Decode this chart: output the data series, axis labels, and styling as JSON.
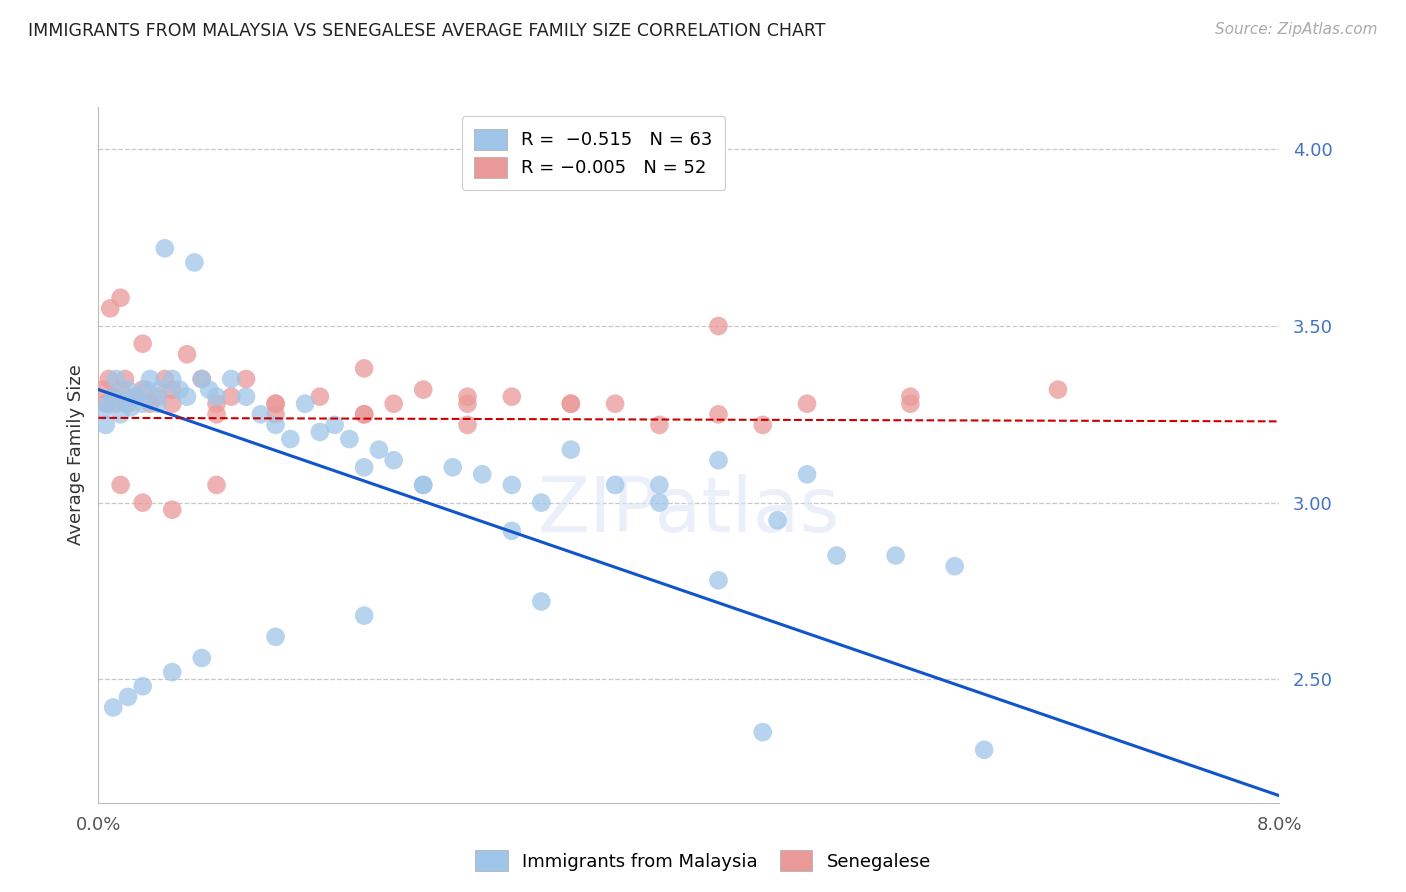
{
  "title": "IMMIGRANTS FROM MALAYSIA VS SENEGALESE AVERAGE FAMILY SIZE CORRELATION CHART",
  "source": "Source: ZipAtlas.com",
  "ylabel": "Average Family Size",
  "yticks": [
    2.5,
    3.0,
    3.5,
    4.0
  ],
  "ytick_color": "#4472C4",
  "background_color": "#ffffff",
  "grid_color": "#c8c8c8",
  "blue_color": "#9FC5E8",
  "pink_color": "#EA9999",
  "trendline_blue": "#1155CC",
  "trendline_pink": "#CC0000",
  "xmin": 0.0,
  "xmax": 0.08,
  "ymin": 2.15,
  "ymax": 4.12,
  "blue_trend_x0": 0.0,
  "blue_trend_x1": 0.08,
  "blue_trend_y0": 3.32,
  "blue_trend_y1": 2.17,
  "pink_trend_x0": 0.0,
  "pink_trend_x1": 0.08,
  "pink_trend_y0": 3.24,
  "pink_trend_y1": 3.23,
  "blue_scatter_x": [
    0.0003,
    0.0005,
    0.0007,
    0.001,
    0.0012,
    0.0015,
    0.0018,
    0.002,
    0.0022,
    0.0025,
    0.003,
    0.0032,
    0.0035,
    0.004,
    0.0042,
    0.0045,
    0.005,
    0.0055,
    0.006,
    0.0065,
    0.007,
    0.0075,
    0.008,
    0.009,
    0.01,
    0.011,
    0.012,
    0.013,
    0.014,
    0.015,
    0.016,
    0.017,
    0.018,
    0.019,
    0.02,
    0.022,
    0.024,
    0.026,
    0.028,
    0.03,
    0.032,
    0.035,
    0.038,
    0.042,
    0.046,
    0.05,
    0.054,
    0.058,
    0.048,
    0.038,
    0.028,
    0.022,
    0.042,
    0.03,
    0.018,
    0.012,
    0.007,
    0.005,
    0.003,
    0.002,
    0.001,
    0.045,
    0.06
  ],
  "blue_scatter_y": [
    3.26,
    3.22,
    3.28,
    3.3,
    3.35,
    3.25,
    3.28,
    3.32,
    3.27,
    3.3,
    3.28,
    3.32,
    3.35,
    3.28,
    3.32,
    3.72,
    3.35,
    3.32,
    3.3,
    3.68,
    3.35,
    3.32,
    3.3,
    3.35,
    3.3,
    3.25,
    3.22,
    3.18,
    3.28,
    3.2,
    3.22,
    3.18,
    3.1,
    3.15,
    3.12,
    3.05,
    3.1,
    3.08,
    3.05,
    3.0,
    3.15,
    3.05,
    3.05,
    3.12,
    2.95,
    2.85,
    2.85,
    2.82,
    3.08,
    3.0,
    2.92,
    3.05,
    2.78,
    2.72,
    2.68,
    2.62,
    2.56,
    2.52,
    2.48,
    2.45,
    2.42,
    2.35,
    2.3
  ],
  "pink_scatter_x": [
    0.0003,
    0.0005,
    0.0007,
    0.001,
    0.0012,
    0.0015,
    0.0018,
    0.002,
    0.0025,
    0.003,
    0.0035,
    0.004,
    0.0045,
    0.005,
    0.006,
    0.007,
    0.008,
    0.009,
    0.01,
    0.012,
    0.015,
    0.018,
    0.02,
    0.022,
    0.025,
    0.028,
    0.032,
    0.038,
    0.042,
    0.048,
    0.055,
    0.065,
    0.0008,
    0.0015,
    0.003,
    0.005,
    0.008,
    0.012,
    0.018,
    0.025,
    0.035,
    0.045,
    0.055,
    0.042,
    0.032,
    0.025,
    0.018,
    0.012,
    0.008,
    0.005,
    0.003,
    0.0015
  ],
  "pink_scatter_y": [
    3.32,
    3.28,
    3.35,
    3.3,
    3.28,
    3.32,
    3.35,
    3.28,
    3.3,
    3.32,
    3.28,
    3.3,
    3.35,
    3.28,
    3.42,
    3.35,
    3.28,
    3.3,
    3.35,
    3.25,
    3.3,
    3.25,
    3.28,
    3.32,
    3.28,
    3.3,
    3.28,
    3.22,
    3.25,
    3.28,
    3.3,
    3.32,
    3.55,
    3.58,
    3.45,
    3.32,
    3.25,
    3.28,
    3.38,
    3.3,
    3.28,
    3.22,
    3.28,
    3.5,
    3.28,
    3.22,
    3.25,
    3.28,
    3.05,
    2.98,
    3.0,
    3.05
  ]
}
